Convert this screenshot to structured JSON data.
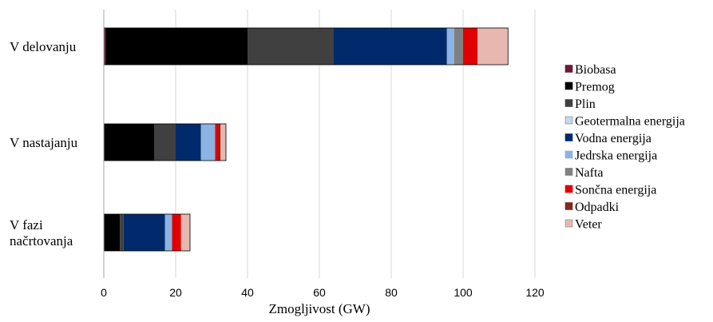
{
  "chart_data": {
    "type": "bar",
    "orientation": "horizontal",
    "stacked": true,
    "title": "",
    "xlabel": "Zmogljivost (GW)",
    "ylabel": "",
    "xlim": [
      0,
      120
    ],
    "xticks": [
      0,
      20,
      40,
      60,
      80,
      100,
      120
    ],
    "grid": "vertical",
    "legend_position": "right",
    "categories": [
      [
        "V delovanju"
      ],
      [
        "V nastajanju"
      ],
      [
        "V fazi",
        "načrtovanja"
      ]
    ],
    "series": [
      {
        "name": "Biobasa",
        "color": "#6b1a3a",
        "values": [
          0.5,
          0,
          0
        ]
      },
      {
        "name": "Premog",
        "color": "#000000",
        "values": [
          39.5,
          14,
          4.5
        ]
      },
      {
        "name": "Plin",
        "color": "#404040",
        "values": [
          24,
          6,
          1
        ]
      },
      {
        "name": "Geotermalna energija",
        "color": "#c6d9f1",
        "values": [
          0,
          0,
          0
        ]
      },
      {
        "name": "Vodna energija",
        "color": "#002a6c",
        "values": [
          31.5,
          7,
          11.5
        ]
      },
      {
        "name": "Jedrska energija",
        "color": "#8db3e2",
        "values": [
          2,
          4,
          2
        ]
      },
      {
        "name": "Nafta",
        "color": "#808080",
        "values": [
          2.5,
          0,
          0
        ]
      },
      {
        "name": "Sončna energija",
        "color": "#e00000",
        "values": [
          4,
          1,
          2.5
        ]
      },
      {
        "name": "Odpadki",
        "color": "#7f2a1a",
        "values": [
          0,
          0.5,
          0
        ]
      },
      {
        "name": "Veter",
        "color": "#e6b8b0",
        "values": [
          8.5,
          1.5,
          2.5
        ]
      }
    ]
  }
}
